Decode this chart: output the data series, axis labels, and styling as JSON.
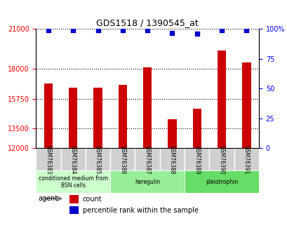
{
  "title": "GDS1518 / 1390545_at",
  "samples": [
    "GSM76383",
    "GSM76384",
    "GSM76385",
    "GSM76386",
    "GSM76387",
    "GSM76388",
    "GSM76389",
    "GSM76390",
    "GSM76391"
  ],
  "counts": [
    16900,
    16600,
    16600,
    16800,
    18100,
    14200,
    15000,
    19400,
    18500
  ],
  "percentiles": [
    99,
    99,
    99,
    99,
    99,
    97,
    96,
    99,
    99
  ],
  "ylim_left": [
    12000,
    21000
  ],
  "ylim_right": [
    0,
    100
  ],
  "yticks_left": [
    12000,
    13500,
    15750,
    18000,
    21000
  ],
  "yticks_right": [
    0,
    25,
    50,
    75,
    100
  ],
  "bar_color": "#cc0000",
  "dot_color": "#0000cc",
  "groups": [
    {
      "label": "conditioned medium from\nBSN cells",
      "start": 0,
      "end": 3,
      "color": "#ccffcc"
    },
    {
      "label": "heregulin",
      "start": 3,
      "end": 6,
      "color": "#99ee99"
    },
    {
      "label": "pleiotrophin",
      "start": 6,
      "end": 9,
      "color": "#66dd66"
    }
  ],
  "agent_label": "agent",
  "legend_count_label": "count",
  "legend_pct_label": "percentile rank within the sample",
  "grid_color": "#000000",
  "background_color": "#ffffff",
  "plot_bg_color": "#ffffff"
}
